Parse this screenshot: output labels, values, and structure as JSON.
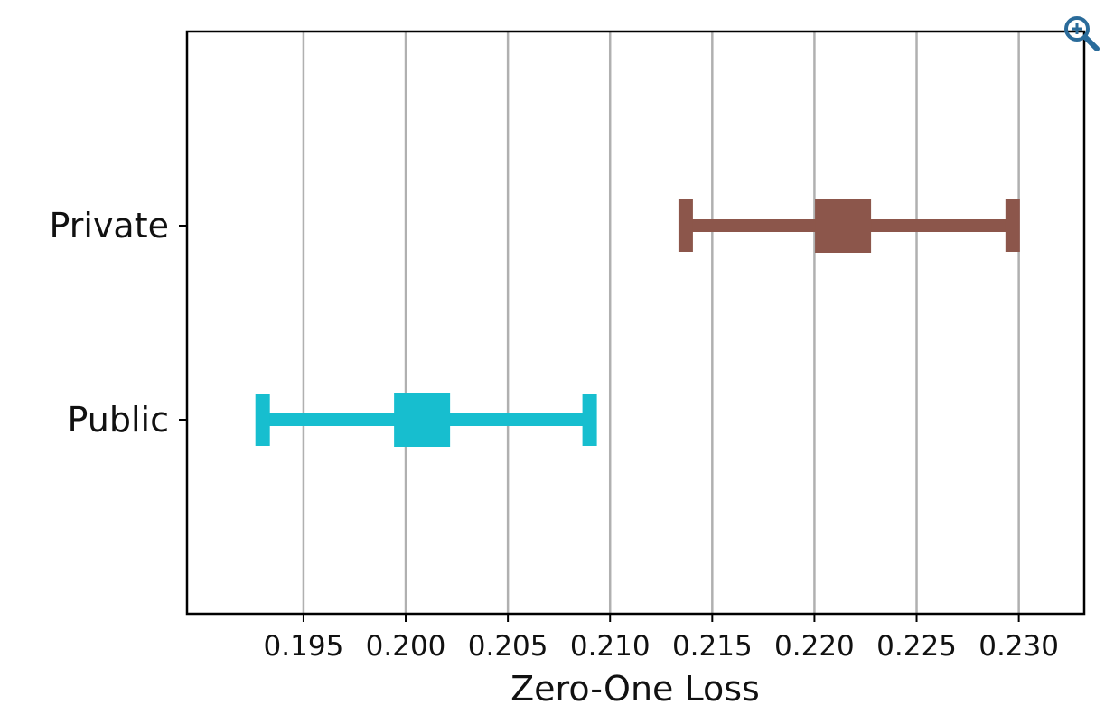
{
  "chart_data": {
    "type": "errorbar",
    "title": "",
    "xlabel": "Zero-One Loss",
    "ylabel": "",
    "xlim": [
      0.1893,
      0.2332
    ],
    "x_ticks": [
      "0.195",
      "0.200",
      "0.205",
      "0.210",
      "0.215",
      "0.220",
      "0.225",
      "0.230"
    ],
    "categories": [
      "Private",
      "Public"
    ],
    "grid": "vertical",
    "series": [
      {
        "category": "Private",
        "center": 0.2214,
        "low": 0.2137,
        "high": 0.2297,
        "color": "#8c564b"
      },
      {
        "category": "Public",
        "center": 0.2008,
        "low": 0.193,
        "high": 0.209,
        "color": "#17becf"
      }
    ]
  },
  "toolbar": {
    "zoom_icon": "zoom-in-icon",
    "icon_color": "#2a6b9a"
  }
}
